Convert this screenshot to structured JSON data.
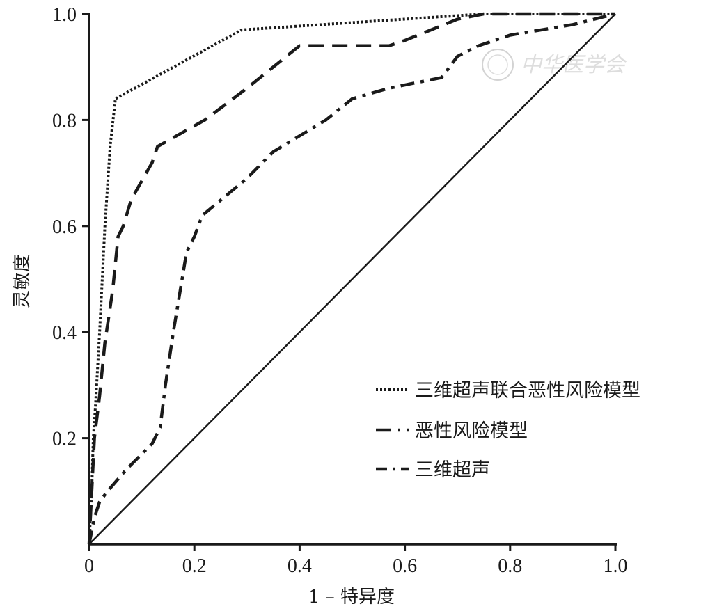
{
  "chart_data": {
    "type": "line",
    "title": "",
    "xlabel": "1 – 特异度",
    "ylabel": "灵敏度",
    "xlim": [
      0,
      1
    ],
    "ylim": [
      0,
      1
    ],
    "x_ticks": [
      "0",
      "0.2",
      "0.4",
      "0.6",
      "0.8",
      "1.0"
    ],
    "y_ticks": [
      "0.2",
      "0.4",
      "0.6",
      "0.8",
      "1.0"
    ],
    "grid": false,
    "legend_position": "bottom-right",
    "reference_line": {
      "x": [
        0,
        1
      ],
      "y": [
        0,
        1
      ],
      "style": "solid"
    },
    "series": [
      {
        "name": "三维超声联合恶性风险模型",
        "style": "dotted",
        "x": [
          0,
          0.005,
          0.008,
          0.012,
          0.02,
          0.03,
          0.04,
          0.05,
          0.29,
          0.75,
          1.0
        ],
        "y": [
          0,
          0.1,
          0.2,
          0.26,
          0.4,
          0.6,
          0.75,
          0.84,
          0.97,
          1.0,
          1.0
        ]
      },
      {
        "name": "恶性风险模型",
        "style": "dash",
        "x": [
          0,
          0.005,
          0.01,
          0.02,
          0.03,
          0.045,
          0.055,
          0.065,
          0.08,
          0.12,
          0.13,
          0.22,
          0.3,
          0.4,
          0.57,
          0.6,
          0.7,
          0.75,
          0.8,
          1.0
        ],
        "y": [
          0,
          0.1,
          0.2,
          0.28,
          0.38,
          0.48,
          0.58,
          0.6,
          0.65,
          0.72,
          0.75,
          0.8,
          0.86,
          0.94,
          0.94,
          0.95,
          0.99,
          1.0,
          1.0,
          1.0
        ]
      },
      {
        "name": "三维超声",
        "style": "dash-dot",
        "x": [
          0,
          0.01,
          0.02,
          0.035,
          0.07,
          0.12,
          0.135,
          0.145,
          0.16,
          0.185,
          0.2,
          0.215,
          0.3,
          0.35,
          0.45,
          0.5,
          0.57,
          0.67,
          0.7,
          0.74,
          0.8,
          0.92,
          1.0
        ],
        "y": [
          0,
          0.05,
          0.08,
          0.1,
          0.14,
          0.19,
          0.22,
          0.3,
          0.4,
          0.55,
          0.58,
          0.62,
          0.69,
          0.74,
          0.8,
          0.84,
          0.86,
          0.88,
          0.92,
          0.94,
          0.96,
          0.98,
          1.0
        ]
      }
    ]
  },
  "watermark": "中华医学会"
}
